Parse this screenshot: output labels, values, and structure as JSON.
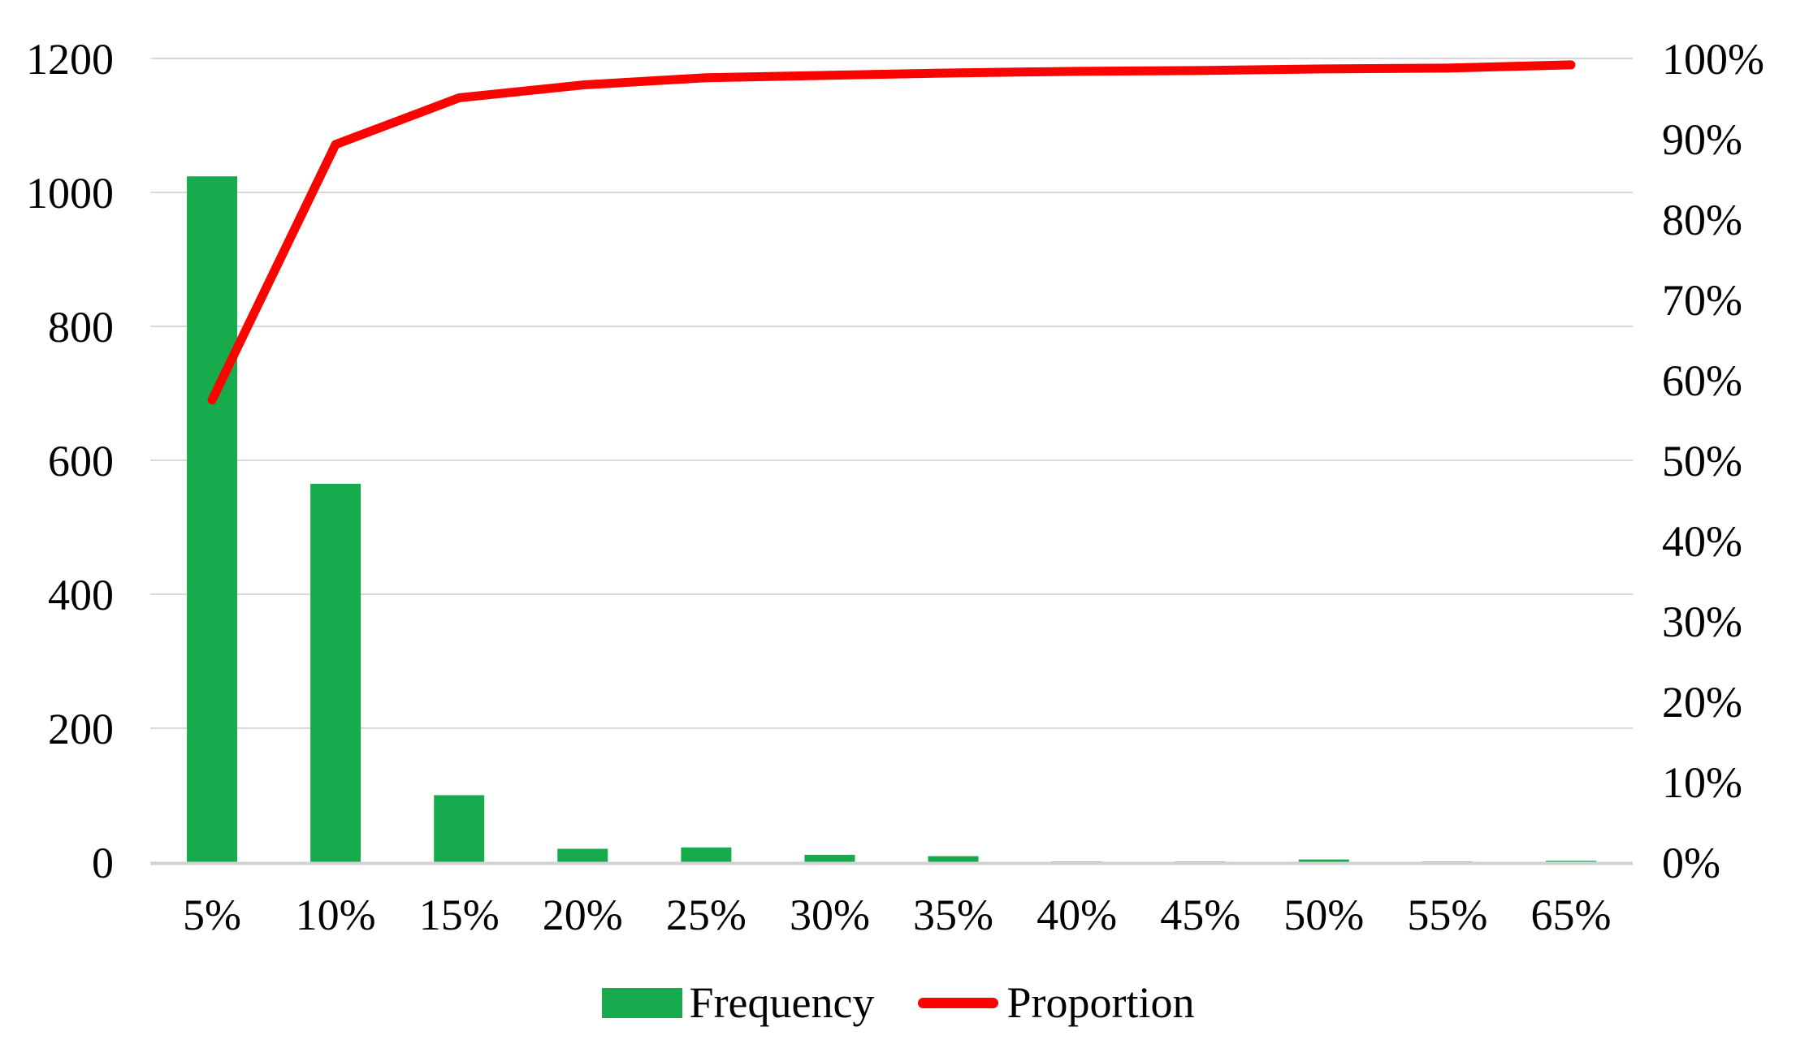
{
  "chart_data": {
    "type": "bar",
    "subtype": "pareto-combo-bar-line",
    "title": "",
    "xlabel": "",
    "ylabel_left": "",
    "ylabel_right": "",
    "categories": [
      "5%",
      "10%",
      "15%",
      "20%",
      "25%",
      "30%",
      "35%",
      "40%",
      "45%",
      "50%",
      "55%",
      "65%"
    ],
    "series": [
      {
        "name": "Frequency",
        "type": "bar",
        "axis": "left",
        "color": "#17AB4D",
        "values": [
          1024,
          565,
          100,
          20,
          22,
          11,
          9,
          1,
          1,
          4,
          1,
          2
        ]
      },
      {
        "name": "Proportion",
        "type": "line",
        "axis": "right",
        "color": "#FA0400",
        "values_percent": [
          57.5,
          89.3,
          95.1,
          96.7,
          97.6,
          97.9,
          98.2,
          98.4,
          98.5,
          98.7,
          98.8,
          99.2
        ]
      }
    ],
    "left_axis": {
      "min": 0,
      "max": 1200,
      "step": 200,
      "ticks": [
        {
          "label": "1200",
          "value": 1200
        },
        {
          "label": "1000",
          "value": 1000
        },
        {
          "label": "800",
          "value": 800
        },
        {
          "label": "600",
          "value": 600
        },
        {
          "label": "400",
          "value": 400
        },
        {
          "label": "200",
          "value": 200
        },
        {
          "label": "0",
          "value": 0
        }
      ]
    },
    "right_axis": {
      "min": 0,
      "max": 100,
      "step": 10,
      "ticks": [
        {
          "label": "100%",
          "value": 100
        },
        {
          "label": "90%",
          "value": 90
        },
        {
          "label": "80%",
          "value": 80
        },
        {
          "label": "70%",
          "value": 70
        },
        {
          "label": "60%",
          "value": 60
        },
        {
          "label": "50%",
          "value": 50
        },
        {
          "label": "40%",
          "value": 40
        },
        {
          "label": "30%",
          "value": 30
        },
        {
          "label": "20%",
          "value": 20
        },
        {
          "label": "10%",
          "value": 10
        },
        {
          "label": "0%",
          "value": 0
        }
      ]
    },
    "grid": "horizontal gridlines at left-axis steps, light gray",
    "legend_position": "bottom center"
  },
  "legend": {
    "frequency_label": "Frequency",
    "proportion_label": "Proportion"
  },
  "colors": {
    "bar_green": "#17AB4D",
    "line_red": "#FA0400",
    "gridline": "#D9D9D9",
    "baseline": "#D2D2D2",
    "text": "#000000",
    "background": "#FFFFFF"
  }
}
